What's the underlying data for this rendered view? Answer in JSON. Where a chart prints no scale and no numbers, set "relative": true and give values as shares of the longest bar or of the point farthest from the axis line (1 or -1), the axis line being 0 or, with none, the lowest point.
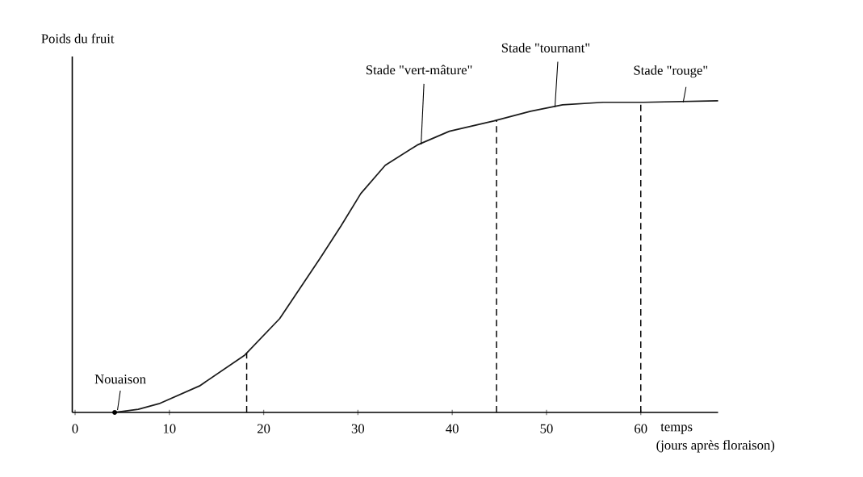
{
  "chart_data": {
    "type": "line",
    "relative": true,
    "color": "#1a1a1a",
    "ylabel": "Poids du fruit",
    "xlabel": "temps",
    "x": [
      4.2,
      6.7,
      8.9,
      13.2,
      18.0,
      21.7,
      26.0,
      28.2,
      30.3,
      32.9,
      36.3,
      39.7,
      44.4,
      48.3,
      51.7,
      56.0,
      60.3,
      68.2
    ],
    "values": [
      0,
      0.01,
      0.028,
      0.085,
      0.184,
      0.301,
      0.495,
      0.598,
      0.702,
      0.793,
      0.858,
      0.902,
      0.935,
      0.966,
      0.987,
      0.995,
      0.995,
      1
    ],
    "xlim": [
      -0.3,
      68.2
    ],
    "xticks": [
      0,
      10,
      20,
      30,
      40,
      50,
      60
    ],
    "ref_lines": [
      {
        "axis": "x",
        "value": 18.2,
        "line_style": "dashed"
      },
      {
        "axis": "x",
        "value": 44.7,
        "line_style": "dashed"
      },
      {
        "axis": "x",
        "value": 60,
        "line_style": "dashed"
      }
    ],
    "annotations": [
      {
        "text": "Nouaison",
        "x": 4.2,
        "y": 0
      },
      {
        "text": "Stade \"vert-mâture\"",
        "x": 36.4,
        "y": 0.86
      },
      {
        "text": "Stade \"tournant\"",
        "x": 50.6,
        "y": 0.98
      },
      {
        "text": "Stade \"rouge\"",
        "x": 64.2,
        "y": 0.995
      },
      "(jours après floraison)"
    ]
  }
}
